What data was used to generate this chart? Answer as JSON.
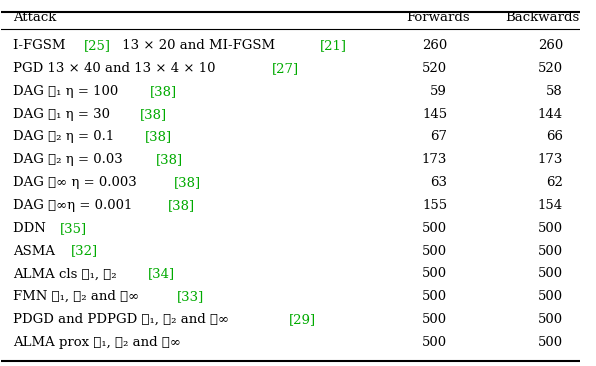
{
  "title": "",
  "col_headers": [
    "Attack",
    "Forwards",
    "Backwards"
  ],
  "rows": [
    {
      "attack_parts": [
        {
          "text": "I-FGSM ",
          "color": "black"
        },
        {
          "text": "[25]",
          "color": "#00aa00"
        },
        {
          "text": " 13 × 20 and MI-FGSM ",
          "color": "black"
        },
        {
          "text": "[21]",
          "color": "#00aa00"
        }
      ],
      "forwards": "260",
      "backwards": "260"
    },
    {
      "attack_parts": [
        {
          "text": "PGD 13 × 40 and 13 × 4 × 10 ",
          "color": "black"
        },
        {
          "text": "[27]",
          "color": "#00aa00"
        }
      ],
      "forwards": "520",
      "backwards": "520"
    },
    {
      "attack_parts": [
        {
          "text": "DAG ℓ₁ η = 100 ",
          "color": "black"
        },
        {
          "text": "[38]",
          "color": "#00aa00"
        }
      ],
      "forwards": "59",
      "backwards": "58"
    },
    {
      "attack_parts": [
        {
          "text": "DAG ℓ₁ η = 30 ",
          "color": "black"
        },
        {
          "text": "[38]",
          "color": "#00aa00"
        }
      ],
      "forwards": "145",
      "backwards": "144"
    },
    {
      "attack_parts": [
        {
          "text": "DAG ℓ₂ η = 0.1 ",
          "color": "black"
        },
        {
          "text": "[38]",
          "color": "#00aa00"
        }
      ],
      "forwards": "67",
      "backwards": "66"
    },
    {
      "attack_parts": [
        {
          "text": "DAG ℓ₂ η = 0.03 ",
          "color": "black"
        },
        {
          "text": "[38]",
          "color": "#00aa00"
        }
      ],
      "forwards": "173",
      "backwards": "173"
    },
    {
      "attack_parts": [
        {
          "text": "DAG ℓ∞ η = 0.003 ",
          "color": "black"
        },
        {
          "text": "[38]",
          "color": "#00aa00"
        }
      ],
      "forwards": "63",
      "backwards": "62"
    },
    {
      "attack_parts": [
        {
          "text": "DAG ℓ∞η = 0.001 ",
          "color": "black"
        },
        {
          "text": "[38]",
          "color": "#00aa00"
        }
      ],
      "forwards": "155",
      "backwards": "154"
    },
    {
      "attack_parts": [
        {
          "text": "DDN ",
          "color": "black"
        },
        {
          "text": "[35]",
          "color": "#00aa00"
        }
      ],
      "forwards": "500",
      "backwards": "500"
    },
    {
      "attack_parts": [
        {
          "text": "ASMA ",
          "color": "black"
        },
        {
          "text": "[32]",
          "color": "#00aa00"
        }
      ],
      "forwards": "500",
      "backwards": "500"
    },
    {
      "attack_parts": [
        {
          "text": "ALMA cls ℓ₁, ℓ₂ ",
          "color": "black"
        },
        {
          "text": "[34]",
          "color": "#00aa00"
        }
      ],
      "forwards": "500",
      "backwards": "500"
    },
    {
      "attack_parts": [
        {
          "text": "FMN ℓ₁, ℓ₂ and ℓ∞ ",
          "color": "black"
        },
        {
          "text": "[33]",
          "color": "#00aa00"
        }
      ],
      "forwards": "500",
      "backwards": "500"
    },
    {
      "attack_parts": [
        {
          "text": "PDGD and PDPGD ℓ₁, ℓ₂ and ℓ∞ ",
          "color": "black"
        },
        {
          "text": "[29]",
          "color": "#00aa00"
        }
      ],
      "forwards": "500",
      "backwards": "500"
    },
    {
      "attack_parts": [
        {
          "text": "ALMA prox ℓ₁, ℓ₂ and ℓ∞",
          "color": "black"
        }
      ],
      "forwards": "500",
      "backwards": "500"
    }
  ],
  "header_color": "black",
  "bg_color": "white",
  "font_size": 9.5,
  "header_font_size": 9.5
}
